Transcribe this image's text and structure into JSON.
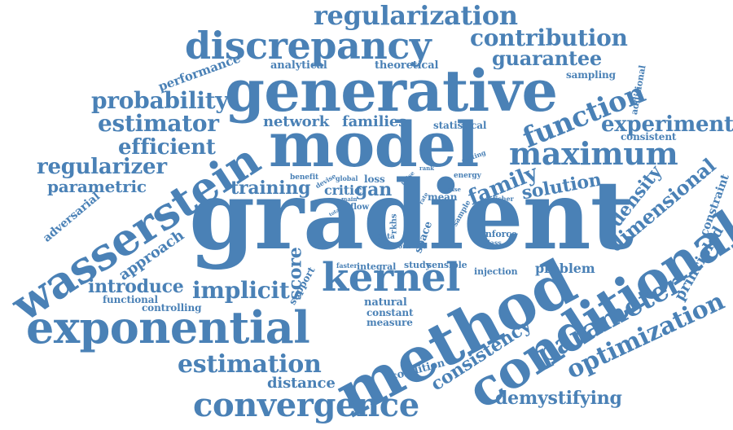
{
  "colors": {
    "word": "#4a81b6",
    "background": "#ffffff"
  },
  "words": [
    {
      "text": "gradient"
    },
    {
      "text": "model"
    },
    {
      "text": "generative"
    },
    {
      "text": "method"
    },
    {
      "text": "conditional"
    },
    {
      "text": "wasserstein"
    },
    {
      "text": "exponential"
    },
    {
      "text": "discrepancy"
    },
    {
      "text": "kernel"
    },
    {
      "text": "convergence"
    },
    {
      "text": "maximum"
    },
    {
      "text": "regularization"
    },
    {
      "text": "contribution"
    },
    {
      "text": "guarantee"
    },
    {
      "text": "function"
    },
    {
      "text": "probability"
    },
    {
      "text": "estimator"
    },
    {
      "text": "experiment"
    },
    {
      "text": "efficient"
    },
    {
      "text": "regularizer"
    },
    {
      "text": "parametric"
    },
    {
      "text": "estimation"
    },
    {
      "text": "parameter"
    },
    {
      "text": "optimization"
    },
    {
      "text": "dimensional"
    },
    {
      "text": "density"
    },
    {
      "text": "family"
    },
    {
      "text": "solution"
    },
    {
      "text": "training"
    },
    {
      "text": "implicit"
    },
    {
      "text": "introduce"
    },
    {
      "text": "consistency"
    },
    {
      "text": "demystifying"
    },
    {
      "text": "distance"
    },
    {
      "text": "score"
    },
    {
      "text": "families"
    },
    {
      "text": "network"
    },
    {
      "text": "critic"
    },
    {
      "text": "gan"
    },
    {
      "text": "problem"
    },
    {
      "text": "principled"
    },
    {
      "text": "constraint"
    },
    {
      "text": "approach"
    },
    {
      "text": "adversarial"
    },
    {
      "text": "performance"
    },
    {
      "text": "analytical"
    },
    {
      "text": "theoretical"
    },
    {
      "text": "sampling"
    },
    {
      "text": "additional"
    },
    {
      "text": "consistent"
    },
    {
      "text": "statistical"
    },
    {
      "text": "natural"
    },
    {
      "text": "constant"
    },
    {
      "text": "measure"
    },
    {
      "text": "functional"
    },
    {
      "text": "controlling"
    },
    {
      "text": "support"
    },
    {
      "text": "condition"
    },
    {
      "text": "integral"
    },
    {
      "text": "study"
    },
    {
      "text": "sensible"
    },
    {
      "text": "injection"
    },
    {
      "text": "faster"
    },
    {
      "text": "loss"
    },
    {
      "text": "mean"
    },
    {
      "text": "space"
    },
    {
      "text": "enforce"
    },
    {
      "text": "class"
    },
    {
      "text": "rkhs"
    },
    {
      "text": "data"
    },
    {
      "text": "cost"
    },
    {
      "text": "work"
    },
    {
      "text": "flow"
    },
    {
      "text": "main"
    },
    {
      "text": "benefit"
    },
    {
      "text": "devise"
    },
    {
      "text": "global"
    },
    {
      "text": "energy"
    },
    {
      "text": "noise"
    },
    {
      "text": "rate"
    },
    {
      "text": "case"
    },
    {
      "text": "setting"
    },
    {
      "text": "sample"
    },
    {
      "text": "fisher"
    },
    {
      "text": "rank"
    },
    {
      "text": "total"
    }
  ]
}
